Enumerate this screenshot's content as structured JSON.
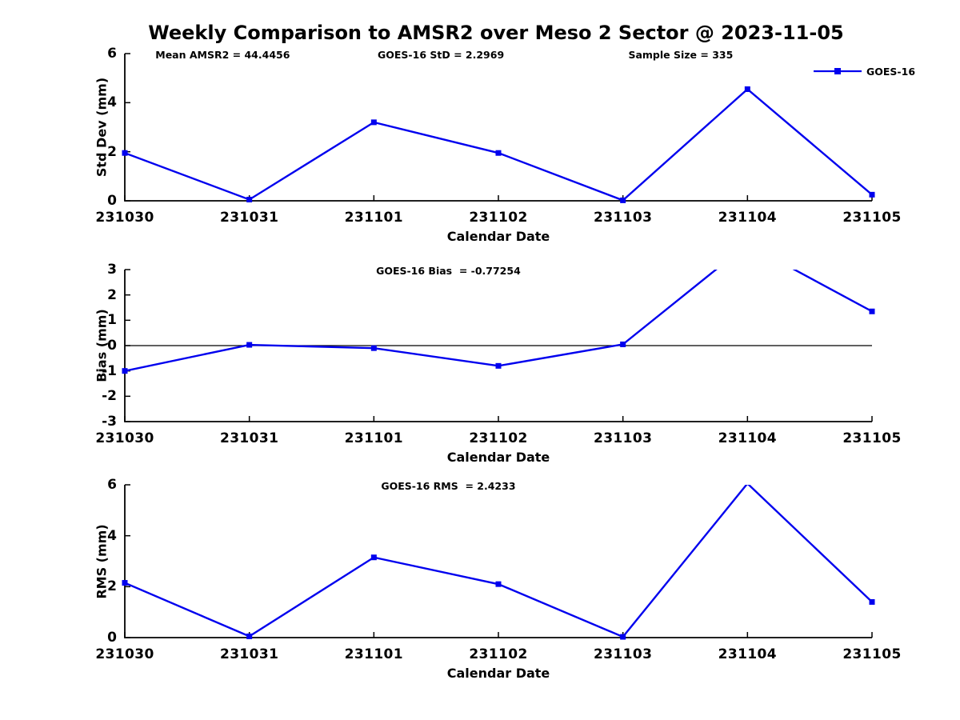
{
  "title": "Weekly Comparison to AMSR2 over Meso 2 Sector @ 2023-11-05",
  "legend": {
    "label": "GOES-16",
    "marker": "filled-square",
    "position": "top-right"
  },
  "colors": {
    "line": "#0000EE",
    "axis": "#000000",
    "text": "#000000",
    "background": "#ffffff"
  },
  "categories": [
    "231030",
    "231031",
    "231101",
    "231102",
    "231103",
    "231104",
    "231105"
  ],
  "chart_data": [
    {
      "type": "line",
      "annotations": [
        "Mean AMSR2 = 44.4456",
        "GOES-16 StD = 2.2969",
        "Sample Size = 335"
      ],
      "ylabel": "Std Dev (mm)",
      "xlabel": "Calendar Date",
      "x": [
        "231030",
        "231031",
        "231101",
        "231102",
        "231103",
        "231104",
        "231105"
      ],
      "series": [
        {
          "name": "GOES-16",
          "values": [
            1.95,
            0.05,
            3.2,
            1.95,
            0.02,
            4.55,
            0.25
          ]
        }
      ],
      "ylim": [
        0,
        6
      ],
      "yticks": [
        0,
        2,
        4,
        6
      ],
      "grid": false,
      "zero_line": false,
      "legend_shown": true
    },
    {
      "type": "line",
      "annotations": [
        "GOES-16 Bias  = -0.77254"
      ],
      "ylabel": "Bias (mm)",
      "xlabel": "Calendar Date",
      "x": [
        "231030",
        "231031",
        "231101",
        "231102",
        "231103",
        "231104",
        "231105"
      ],
      "series": [
        {
          "name": "GOES-16",
          "values": [
            -1.0,
            0.03,
            -0.1,
            -0.8,
            0.05,
            4.0,
            1.35
          ]
        }
      ],
      "ylim": [
        -3,
        3
      ],
      "yticks": [
        -3,
        -2,
        -1,
        0,
        1,
        2,
        3
      ],
      "grid": false,
      "zero_line": true,
      "legend_shown": false,
      "note": "value 4.0 at 231104 exceeds ylim and is clipped at top of axes"
    },
    {
      "type": "line",
      "annotations": [
        "GOES-16 RMS  = 2.4233"
      ],
      "ylabel": "RMS (mm)",
      "xlabel": "Calendar Date",
      "x": [
        "231030",
        "231031",
        "231101",
        "231102",
        "231103",
        "231104",
        "231105"
      ],
      "series": [
        {
          "name": "GOES-16",
          "values": [
            2.15,
            0.05,
            3.15,
            2.1,
            0.03,
            6.05,
            1.4
          ]
        }
      ],
      "ylim": [
        0,
        6
      ],
      "yticks": [
        0,
        2,
        4,
        6
      ],
      "grid": false,
      "zero_line": false,
      "legend_shown": false,
      "note": "value 6.05 at 231104 exceeds ylim and is clipped at top of axes"
    }
  ]
}
